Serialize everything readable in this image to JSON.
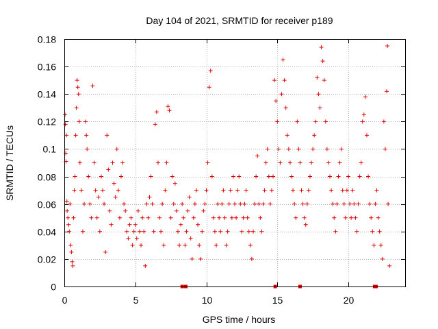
{
  "chart_data": {
    "type": "scatter",
    "title": "Day 104 of 2021, SRMTID for receiver p189",
    "xlabel": "GPS time / hours",
    "ylabel": "SRMTID / TECUs",
    "xlim": [
      0,
      24
    ],
    "ylim": [
      0,
      0.18
    ],
    "x_ticks": [
      0,
      5,
      10,
      15,
      20
    ],
    "x_tick_labels": [
      "0",
      "5",
      "10",
      "15",
      "20"
    ],
    "y_ticks": [
      0,
      0.02,
      0.04,
      0.06,
      0.08,
      0.1,
      0.12,
      0.14,
      0.16,
      0.18
    ],
    "y_tick_labels": [
      "0",
      "0.02",
      "0.04",
      "0.06",
      "0.08",
      "0.1",
      "0.12",
      "0.14",
      "0.16",
      "0.18"
    ],
    "grid": true,
    "marker": "+",
    "color": "#e00000",
    "series": [
      {
        "name": "SRMTID",
        "points": [
          [
            0.05,
            0.125
          ],
          [
            0.08,
            0.118
          ],
          [
            0.1,
            0.097
          ],
          [
            0.12,
            0.091
          ],
          [
            0.15,
            0.11
          ],
          [
            0.18,
            0.062
          ],
          [
            0.2,
            0.055
          ],
          [
            0.25,
            0.05
          ],
          [
            0.3,
            0.045
          ],
          [
            0.35,
            0.04
          ],
          [
            0.4,
            0.06
          ],
          [
            0.45,
            0.03
          ],
          [
            0.5,
            0.025
          ],
          [
            0.55,
            0.018
          ],
          [
            0.6,
            0.015
          ],
          [
            0.65,
            0.05
          ],
          [
            0.7,
            0.07
          ],
          [
            0.75,
            0.08
          ],
          [
            0.8,
            0.11
          ],
          [
            0.85,
            0.13
          ],
          [
            0.9,
            0.15
          ],
          [
            0.95,
            0.145
          ],
          [
            1.0,
            0.14
          ],
          [
            1.05,
            0.12
          ],
          [
            1.1,
            0.09
          ],
          [
            1.2,
            0.07
          ],
          [
            1.3,
            0.04
          ],
          [
            1.4,
            0.06
          ],
          [
            1.5,
            0.12
          ],
          [
            1.55,
            0.11
          ],
          [
            1.6,
            0.1
          ],
          [
            1.7,
            0.08
          ],
          [
            1.8,
            0.06
          ],
          [
            1.9,
            0.05
          ],
          [
            2.0,
            0.146
          ],
          [
            2.1,
            0.09
          ],
          [
            2.2,
            0.07
          ],
          [
            2.3,
            0.05
          ],
          [
            2.4,
            0.065
          ],
          [
            2.5,
            0.04
          ],
          [
            2.6,
            0.08
          ],
          [
            2.7,
            0.07
          ],
          [
            2.8,
            0.06
          ],
          [
            2.9,
            0.025
          ],
          [
            3.0,
            0.11
          ],
          [
            3.1,
            0.085
          ],
          [
            3.2,
            0.055
          ],
          [
            3.3,
            0.045
          ],
          [
            3.4,
            0.09
          ],
          [
            3.5,
            0.075
          ],
          [
            3.6,
            0.065
          ],
          [
            3.7,
            0.1
          ],
          [
            3.8,
            0.07
          ],
          [
            3.9,
            0.05
          ],
          [
            4.0,
            0.08
          ],
          [
            4.1,
            0.09
          ],
          [
            4.2,
            0.06
          ],
          [
            4.3,
            0.055
          ],
          [
            4.4,
            0.04
          ],
          [
            4.5,
            0.035
          ],
          [
            4.6,
            0.045
          ],
          [
            4.7,
            0.05
          ],
          [
            4.8,
            0.03
          ],
          [
            4.9,
            0.04
          ],
          [
            5.0,
            0.045
          ],
          [
            5.1,
            0.035
          ],
          [
            5.2,
            0.055
          ],
          [
            5.3,
            0.04
          ],
          [
            5.4,
            0.03
          ],
          [
            5.5,
            0.05
          ],
          [
            5.6,
            0.04
          ],
          [
            5.7,
            0.015
          ],
          [
            5.8,
            0.06
          ],
          [
            5.9,
            0.05
          ],
          [
            6.0,
            0.065
          ],
          [
            6.1,
            0.08
          ],
          [
            6.2,
            0.06
          ],
          [
            6.3,
            0.04
          ],
          [
            6.4,
            0.118
          ],
          [
            6.5,
            0.127
          ],
          [
            6.6,
            0.09
          ],
          [
            6.7,
            0.05
          ],
          [
            6.8,
            0.04
          ],
          [
            6.9,
            0.06
          ],
          [
            7.0,
            0.03
          ],
          [
            7.1,
            0.07
          ],
          [
            7.2,
            0.09
          ],
          [
            7.3,
            0.131
          ],
          [
            7.4,
            0.128
          ],
          [
            7.5,
            0.05
          ],
          [
            7.6,
            0.08
          ],
          [
            7.7,
            0.06
          ],
          [
            7.8,
            0.075
          ],
          [
            7.9,
            0.055
          ],
          [
            8.0,
            0.04
          ],
          [
            8.1,
            0.03
          ],
          [
            8.2,
            0.045
          ],
          [
            8.3,
            0.06
          ],
          [
            8.4,
            0.05
          ],
          [
            8.5,
            0.03
          ],
          [
            8.6,
            0.04
          ],
          [
            8.7,
            0.055
          ],
          [
            8.8,
            0.065
          ],
          [
            8.9,
            0.035
          ],
          [
            9.0,
            0.02
          ],
          [
            9.1,
            0.05
          ],
          [
            9.2,
            0.06
          ],
          [
            9.3,
            0.07
          ],
          [
            9.4,
            0.045
          ],
          [
            9.5,
            0.03
          ],
          [
            9.6,
            0.02
          ],
          [
            9.7,
            0.04
          ],
          [
            9.8,
            0.055
          ],
          [
            9.9,
            0.06
          ],
          [
            10.0,
            0.07
          ],
          [
            10.1,
            0.09
          ],
          [
            10.2,
            0.145
          ],
          [
            10.3,
            0.157
          ],
          [
            10.4,
            0.08
          ],
          [
            10.5,
            0.05
          ],
          [
            10.6,
            0.04
          ],
          [
            10.7,
            0.03
          ],
          [
            10.8,
            0.06
          ],
          [
            10.9,
            0.05
          ],
          [
            11.0,
            0.04
          ],
          [
            11.1,
            0.06
          ],
          [
            11.2,
            0.07
          ],
          [
            11.3,
            0.05
          ],
          [
            11.4,
            0.03
          ],
          [
            11.5,
            0.04
          ],
          [
            11.6,
            0.06
          ],
          [
            11.7,
            0.07
          ],
          [
            11.8,
            0.05
          ],
          [
            11.9,
            0.08
          ],
          [
            12.0,
            0.06
          ],
          [
            12.1,
            0.05
          ],
          [
            12.2,
            0.07
          ],
          [
            12.3,
            0.08
          ],
          [
            12.4,
            0.06
          ],
          [
            12.5,
            0.04
          ],
          [
            12.6,
            0.05
          ],
          [
            12.7,
            0.06
          ],
          [
            12.8,
            0.07
          ],
          [
            12.9,
            0.05
          ],
          [
            13.0,
            0.04
          ],
          [
            13.1,
            0.03
          ],
          [
            13.2,
            0.02
          ],
          [
            13.3,
            0.04
          ],
          [
            13.4,
            0.06
          ],
          [
            13.5,
            0.08
          ],
          [
            13.6,
            0.095
          ],
          [
            13.7,
            0.06
          ],
          [
            13.8,
            0.05
          ],
          [
            13.9,
            0.04
          ],
          [
            14.0,
            0.06
          ],
          [
            14.1,
            0.07
          ],
          [
            14.2,
            0.09
          ],
          [
            14.3,
            0.1
          ],
          [
            14.4,
            0.08
          ],
          [
            14.5,
            0.06
          ],
          [
            14.6,
            0.07
          ],
          [
            14.7,
            0.08
          ],
          [
            14.8,
            0.15
          ],
          [
            14.9,
            0.135
          ],
          [
            15.0,
            0.12
          ],
          [
            15.1,
            0.1
          ],
          [
            15.2,
            0.09
          ],
          [
            15.3,
            0.14
          ],
          [
            15.4,
            0.165
          ],
          [
            15.5,
            0.15
          ],
          [
            15.6,
            0.13
          ],
          [
            15.7,
            0.11
          ],
          [
            15.8,
            0.1
          ],
          [
            15.9,
            0.09
          ],
          [
            16.0,
            0.08
          ],
          [
            16.1,
            0.07
          ],
          [
            16.2,
            0.06
          ],
          [
            16.3,
            0.05
          ],
          [
            16.4,
            0.12
          ],
          [
            16.5,
            0.1
          ],
          [
            16.6,
            0.09
          ],
          [
            16.7,
            0.07
          ],
          [
            16.8,
            0.06
          ],
          [
            16.9,
            0.05
          ],
          [
            17.0,
            0.045
          ],
          [
            17.1,
            0.06
          ],
          [
            17.2,
            0.07
          ],
          [
            17.3,
            0.08
          ],
          [
            17.4,
            0.09
          ],
          [
            17.5,
            0.1
          ],
          [
            17.6,
            0.11
          ],
          [
            17.7,
            0.12
          ],
          [
            17.8,
            0.152
          ],
          [
            17.9,
            0.14
          ],
          [
            18.0,
            0.13
          ],
          [
            18.1,
            0.174
          ],
          [
            18.2,
            0.164
          ],
          [
            18.3,
            0.15
          ],
          [
            18.4,
            0.12
          ],
          [
            18.5,
            0.1
          ],
          [
            18.6,
            0.09
          ],
          [
            18.7,
            0.08
          ],
          [
            18.8,
            0.07
          ],
          [
            18.9,
            0.06
          ],
          [
            19.0,
            0.05
          ],
          [
            19.1,
            0.04
          ],
          [
            19.2,
            0.06
          ],
          [
            19.3,
            0.08
          ],
          [
            19.4,
            0.09
          ],
          [
            19.5,
            0.1
          ],
          [
            19.6,
            0.07
          ],
          [
            19.7,
            0.06
          ],
          [
            19.8,
            0.05
          ],
          [
            19.9,
            0.07
          ],
          [
            20.0,
            0.08
          ],
          [
            20.1,
            0.06
          ],
          [
            20.2,
            0.05
          ],
          [
            20.3,
            0.07
          ],
          [
            20.4,
            0.06
          ],
          [
            20.5,
            0.05
          ],
          [
            20.6,
            0.04
          ],
          [
            20.7,
            0.06
          ],
          [
            20.8,
            0.08
          ],
          [
            20.9,
            0.09
          ],
          [
            21.0,
            0.12
          ],
          [
            21.1,
            0.125
          ],
          [
            21.2,
            0.138
          ],
          [
            21.3,
            0.11
          ],
          [
            21.4,
            0.08
          ],
          [
            21.5,
            0.06
          ],
          [
            21.6,
            0.05
          ],
          [
            21.7,
            0.04
          ],
          [
            21.8,
            0.03
          ],
          [
            21.9,
            0.06
          ],
          [
            22.0,
            0.07
          ],
          [
            22.1,
            0.05
          ],
          [
            22.2,
            0.04
          ],
          [
            22.3,
            0.03
          ],
          [
            22.4,
            0.02
          ],
          [
            22.5,
            0.12
          ],
          [
            22.6,
            0.1
          ],
          [
            22.7,
            0.142
          ],
          [
            22.75,
            0.175
          ],
          [
            22.8,
            0.06
          ],
          [
            22.9,
            0.015
          ]
        ]
      }
    ],
    "zero_markers_x": [
      8.3,
      8.55,
      14.85,
      16.6,
      21.85,
      21.95
    ]
  }
}
